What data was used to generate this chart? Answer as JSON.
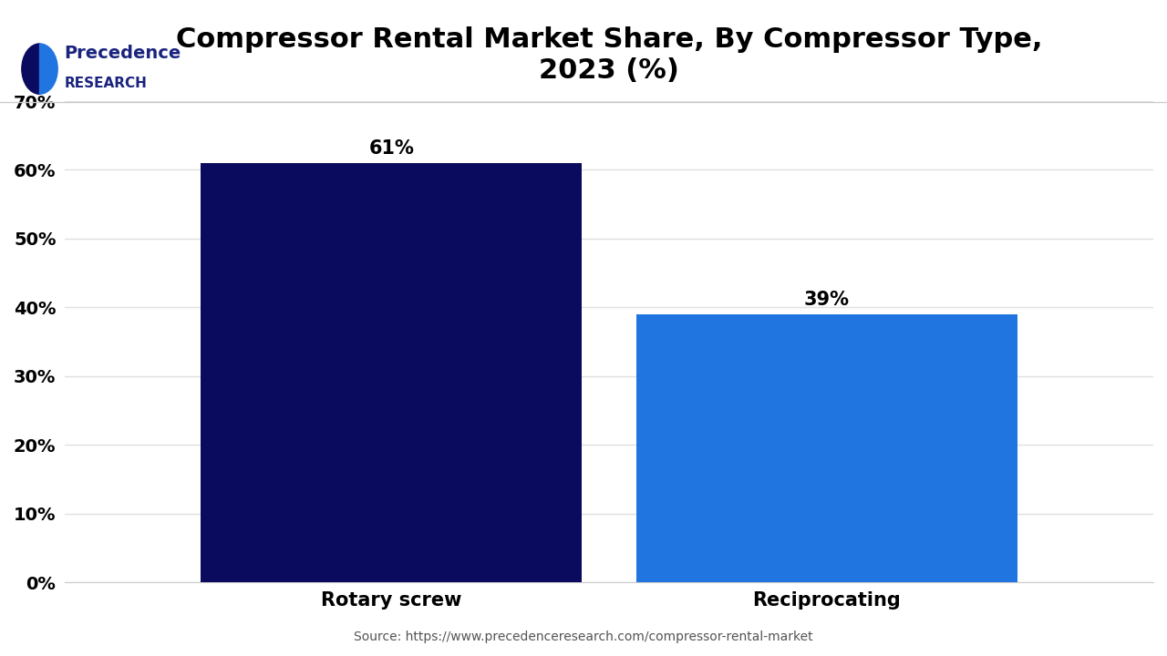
{
  "title": "Compressor Rental Market Share, By Compressor Type,\n2023 (%)",
  "categories": [
    "Rotary screw",
    "Reciprocating"
  ],
  "values": [
    61,
    39
  ],
  "bar_colors": [
    "#0a0a5e",
    "#2175e0"
  ],
  "value_labels": [
    "61%",
    "39%"
  ],
  "ylim": [
    0,
    70
  ],
  "yticks": [
    0,
    10,
    20,
    30,
    40,
    50,
    60,
    70
  ],
  "ytick_labels": [
    "0%",
    "10%",
    "20%",
    "30%",
    "40%",
    "50%",
    "60%",
    "70%"
  ],
  "background_color": "#ffffff",
  "grid_color": "#e0e0e0",
  "title_fontsize": 22,
  "tick_fontsize": 14,
  "label_fontsize": 15,
  "value_fontsize": 15,
  "source_text": "Source: https://www.precedenceresearch.com/compressor-rental-market",
  "logo_text_line1": "Precedence",
  "logo_text_line2": "RESEARCH",
  "bar_width": 0.35
}
